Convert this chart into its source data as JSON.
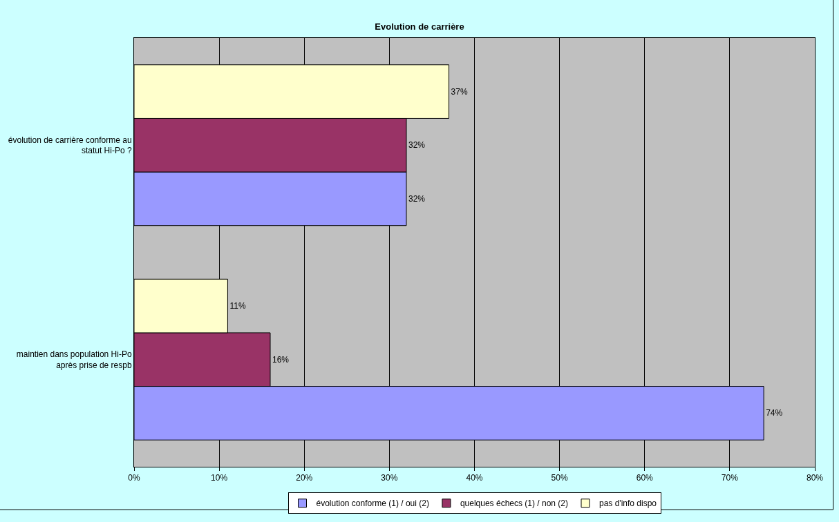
{
  "chart_data": {
    "type": "bar",
    "orientation": "horizontal",
    "title": "Evolution de carrière",
    "categories": [
      "évolution de carrière conforme au statut Hi-Po ?",
      "maintien dans population Hi-Po après prise de respb"
    ],
    "series": [
      {
        "name": "évolution conforme (1) / oui (2)",
        "color": "#9999ff",
        "values": [
          32,
          74
        ],
        "value_labels": [
          "32%",
          "74%"
        ]
      },
      {
        "name": "quelques échecs (1) / non (2)",
        "color": "#993366",
        "values": [
          32,
          16
        ],
        "value_labels": [
          "32%",
          "16%"
        ]
      },
      {
        "name": "pas d'info dispo",
        "color": "#ffffcc",
        "values": [
          37,
          11
        ],
        "value_labels": [
          "37%",
          "11%"
        ]
      }
    ],
    "xlim": [
      0,
      80
    ],
    "xticks": [
      {
        "value": 0,
        "label": "0%"
      },
      {
        "value": 10,
        "label": "10%"
      },
      {
        "value": 20,
        "label": "20%"
      },
      {
        "value": 30,
        "label": "30%"
      },
      {
        "value": 40,
        "label": "40%"
      },
      {
        "value": 50,
        "label": "50%"
      },
      {
        "value": 60,
        "label": "60%"
      },
      {
        "value": 70,
        "label": "70%"
      },
      {
        "value": 80,
        "label": "80%"
      }
    ],
    "grid": "x",
    "legend": "bottom"
  }
}
